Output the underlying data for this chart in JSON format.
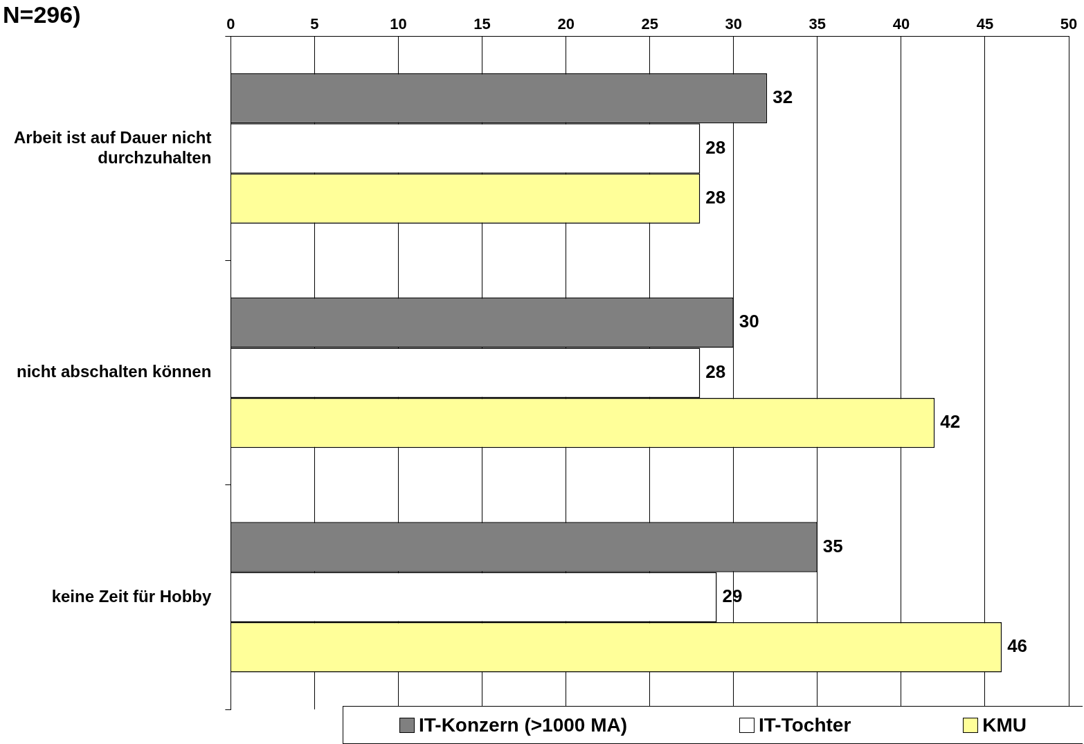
{
  "chart_data": {
    "type": "bar",
    "orientation": "horizontal",
    "title": "N=296)",
    "categories": [
      "Arbeit ist auf Dauer nicht durchzuhalten",
      "nicht abschalten können",
      "keine Zeit für Hobby"
    ],
    "series": [
      {
        "name": "IT-Konzern (>1000 MA)",
        "color": "#808080",
        "values": [
          32,
          30,
          35
        ]
      },
      {
        "name": "IT-Tochter",
        "color": "#ffffff",
        "values": [
          28,
          28,
          29
        ]
      },
      {
        "name": "KMU",
        "color": "#ffff99",
        "values": [
          28,
          42,
          46
        ]
      }
    ],
    "xlim": [
      0,
      50
    ],
    "xticks": [
      0,
      5,
      10,
      15,
      20,
      25,
      30,
      35,
      40,
      45,
      50
    ],
    "grid": "x",
    "legend": "bottom",
    "data_labels": true
  }
}
